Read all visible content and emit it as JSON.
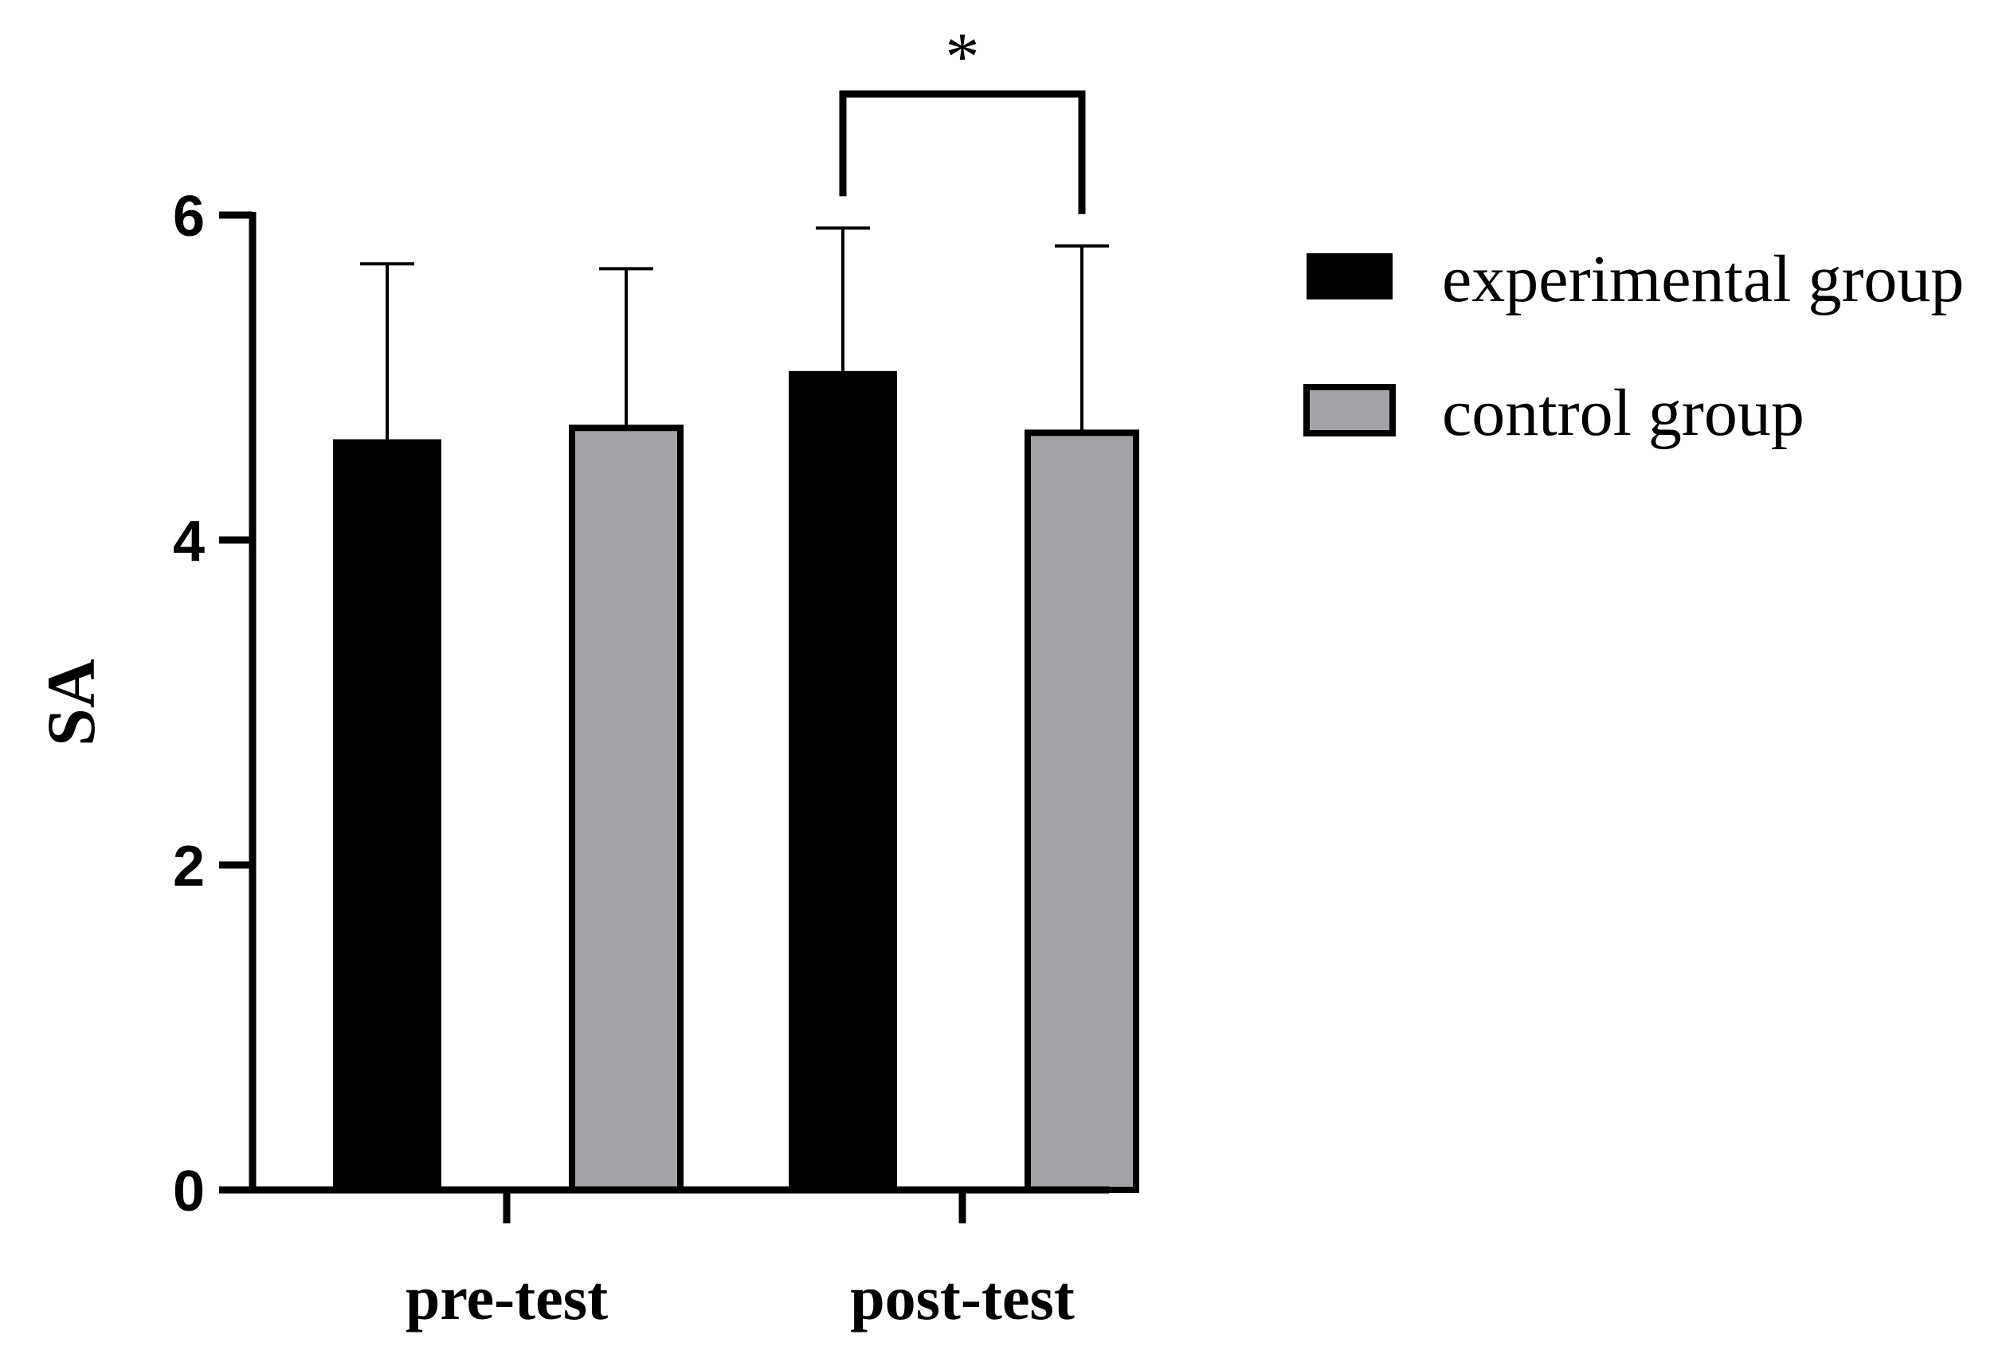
{
  "chart_data": {
    "type": "bar",
    "title": "",
    "xlabel": "",
    "ylabel": "SA",
    "ylim": [
      0,
      6
    ],
    "yticks": [
      0,
      2,
      4,
      6
    ],
    "categories": [
      "pre-test",
      "post-test"
    ],
    "series": [
      {
        "name": "experimental group",
        "color": "#000000",
        "values": [
          4.62,
          5.04
        ],
        "errors": [
          1.08,
          0.88
        ]
      },
      {
        "name": "control group",
        "color": "#a3a2a6",
        "values": [
          4.69,
          4.66
        ],
        "errors": [
          0.98,
          1.15
        ]
      }
    ],
    "significance": [
      {
        "category": "post-test",
        "label": "*"
      }
    ],
    "legend_position": "top-right",
    "grid": false
  }
}
